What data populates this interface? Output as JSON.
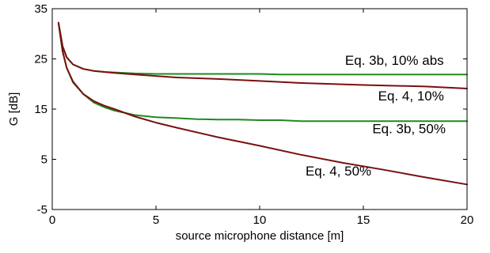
{
  "chart_data": {
    "type": "line",
    "title": "",
    "xlabel": "source microphone distance  [m]",
    "ylabel": "G  [dB]",
    "xlim": [
      0,
      20
    ],
    "ylim": [
      -5,
      35
    ],
    "xticks": [
      0,
      5,
      10,
      15,
      20
    ],
    "yticks": [
      -5,
      5,
      15,
      25,
      35
    ],
    "grid": false,
    "series": [
      {
        "name": "Eq. 3b, 10% abs",
        "color": "#1f8a1f",
        "x": [
          0.3,
          0.5,
          0.7,
          1.0,
          1.5,
          2.0,
          2.5,
          3.0,
          4.0,
          5.0,
          6.0,
          8.0,
          10.0,
          11.0,
          12.0,
          15.0,
          18.0,
          20.0
        ],
        "y": [
          32.2,
          27.5,
          25.3,
          23.9,
          23.0,
          22.6,
          22.4,
          22.3,
          22.1,
          22.0,
          22.0,
          22.0,
          22.0,
          21.9,
          21.9,
          21.9,
          21.9,
          21.9
        ]
      },
      {
        "name": "Eq. 4, 10%",
        "color": "#7a1010",
        "x": [
          0.3,
          0.5,
          0.7,
          1.0,
          1.5,
          2.0,
          2.5,
          3.0,
          4.0,
          5.0,
          6.0,
          8.0,
          10.0,
          12.0,
          15.0,
          18.0,
          20.0
        ],
        "y": [
          32.2,
          27.5,
          25.3,
          23.9,
          23.0,
          22.6,
          22.4,
          22.2,
          21.9,
          21.6,
          21.3,
          21.0,
          20.6,
          20.2,
          19.8,
          19.5,
          19.1
        ]
      },
      {
        "name": "Eq. 3b, 50%",
        "color": "#1f8a1f",
        "x": [
          0.3,
          0.5,
          0.7,
          1.0,
          1.5,
          2.0,
          2.5,
          3.0,
          4.0,
          5.0,
          6.0,
          7.0,
          8.0,
          9.0,
          10.0,
          11.0,
          12.0,
          15.0,
          20.0
        ],
        "y": [
          32.2,
          26.5,
          23.2,
          20.3,
          18.0,
          16.3,
          15.4,
          14.7,
          13.8,
          13.4,
          13.2,
          13.0,
          12.9,
          12.9,
          12.8,
          12.8,
          12.6,
          12.6,
          12.6
        ]
      },
      {
        "name": "Eq. 4, 50%",
        "color": "#7a1010",
        "x": [
          0.3,
          0.5,
          0.7,
          1.0,
          1.5,
          2.0,
          2.5,
          3.0,
          4.0,
          5.0,
          6.0,
          8.0,
          10.0,
          12.0,
          14.0,
          16.0,
          18.0,
          20.0
        ],
        "y": [
          32.2,
          26.5,
          23.2,
          20.5,
          18.0,
          16.6,
          15.7,
          15.0,
          13.5,
          12.3,
          11.3,
          9.4,
          7.7,
          5.9,
          4.3,
          2.9,
          1.4,
          0.0
        ]
      }
    ],
    "annotations": [
      {
        "text": "Eq. 3b, 10% abs",
        "x": 16.5,
        "y": 23.8
      },
      {
        "text": "Eq. 4, 10%",
        "x": 17.3,
        "y": 16.7
      },
      {
        "text": "Eq. 3b, 50%",
        "x": 17.2,
        "y": 10.2
      },
      {
        "text": "Eq. 4, 50%",
        "x": 13.8,
        "y": 1.8
      }
    ]
  }
}
